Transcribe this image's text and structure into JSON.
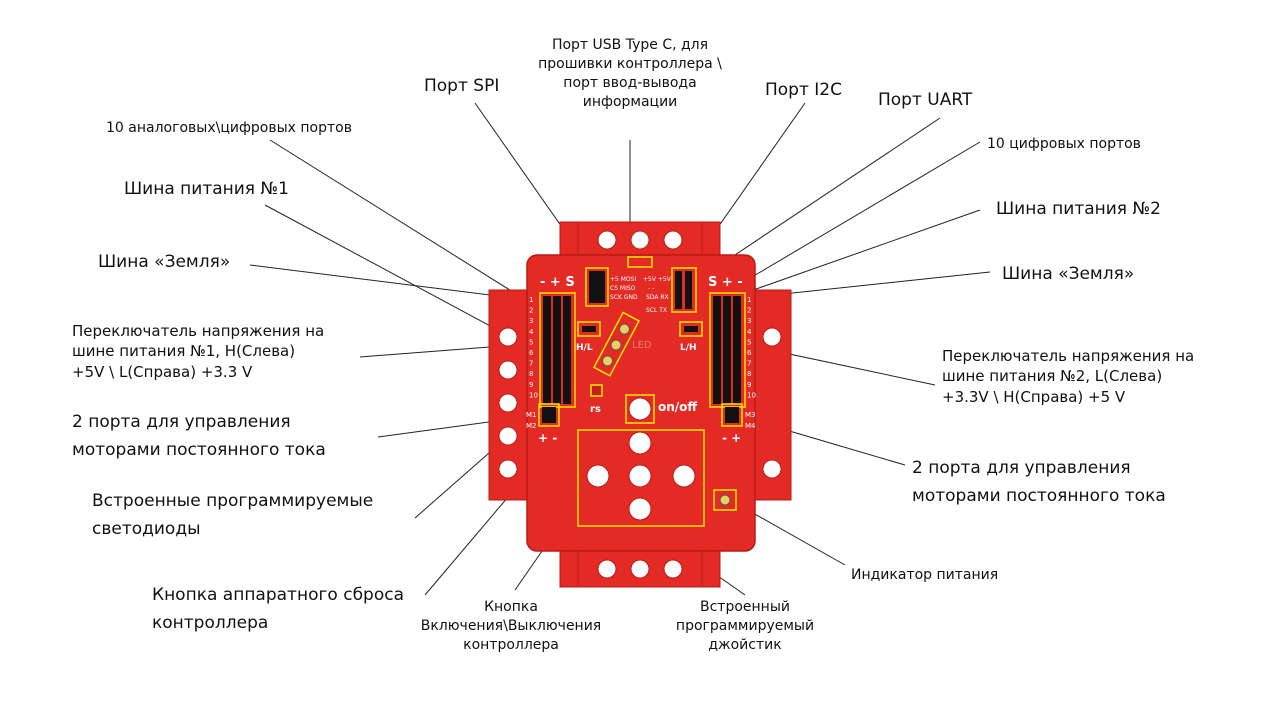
{
  "colors": {
    "board": "#e42a24",
    "board_dark": "#c71f1a",
    "outline": "#ffe600",
    "leader": "#222222",
    "header": "#111111"
  },
  "labels": {
    "usb": "Порт USB Type C, для\nпрошивки контроллера \\\nпорт ввод-вывода\nинформации",
    "spi": "Порт SPI",
    "i2c": "Порт I2C",
    "uart": "Порт UART",
    "analog": "10 аналоговых\\цифровых портов",
    "digital": "10 цифровых портов",
    "bus1": "Шина питания №1",
    "bus2": "Шина питания №2",
    "gnd_left": "Шина «Земля»",
    "gnd_right": "Шина «Земля»",
    "switch1": "Переключатель напряжения на\nшине питания №1, H(Слева)\n+5V \\ L(Справа) +3.3 V",
    "switch2": "Переключатель напряжения на\nшине питания №2, L(Слева)\n+3.3V \\ H(Справа) +5 V",
    "motors_left": "2 порта для управления\nмоторами постоянного тока",
    "motors_right": "2 порта для управления\nмоторами постоянного тока",
    "leds": "Встроенные программируемые\nсветодиоды",
    "reset": "Кнопка аппаратного сброса\nконтроллера",
    "power_button": "Кнопка\nВключения\\Выключения\nконтроллера",
    "joystick": "Встроенный\nпрограммируемый\nджойстик",
    "power_led": "Индикатор питания"
  },
  "board_text": {
    "left_rail": "- + S",
    "right_rail": "S + -",
    "pins": [
      "1",
      "2",
      "3",
      "4",
      "5",
      "6",
      "7",
      "8",
      "9",
      "10"
    ],
    "m1": "M1",
    "m2": "M2",
    "m3": "M3",
    "m4": "M4",
    "spi_silk": [
      "+5 MOSI",
      "CS MISO",
      "SCK GND"
    ],
    "i2c_silk": [
      "+5V +5V",
      "-  -",
      "SDA RX",
      "SCL TX"
    ],
    "sw1": "H/L",
    "sw2": "L/H",
    "rs": "rs",
    "onoff": "on/off",
    "led_mark": "LED",
    "bottom_left": "+ -",
    "bottom_right": "- +"
  }
}
